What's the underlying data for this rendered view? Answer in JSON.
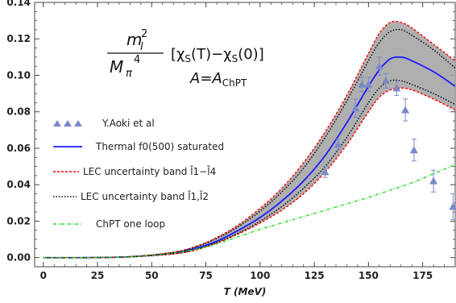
{
  "chart_data": {
    "type": "line",
    "xlabel": "T (MeV)",
    "ylabel": "",
    "xlim": [
      -4,
      190
    ],
    "ylim": [
      -0.005,
      0.14
    ],
    "x_ticks": [
      "0",
      "25",
      "50",
      "75",
      "100",
      "125",
      "150",
      "175"
    ],
    "y_ticks": [
      "0.00",
      "0.02",
      "0.04",
      "0.06",
      "0.08",
      "0.10",
      "0.12",
      "0.14"
    ],
    "annotation": {
      "numerator": "m",
      "numerator_sub": "l",
      "numerator_sup": "2",
      "denominator": "M",
      "denominator_sub": "π",
      "denominator_sup": "4",
      "bracket": "[χ",
      "bracket_sub1": "S",
      "bracket_mid": "(T)−χ",
      "bracket_sub2": "S",
      "bracket_end": "(0)]",
      "condition": "A=A",
      "condition_sub": "ChPT"
    },
    "legend": [
      {
        "name": "Y.Aoki et al",
        "style": "triangles",
        "color": "#7b88c8"
      },
      {
        "name": "Thermal f0(500) saturated",
        "style": "solid",
        "color": "#1a1aff"
      },
      {
        "name": "LEC uncertainty band l̄1−l̄4",
        "style": "red-dashed",
        "color": "#ff0000"
      },
      {
        "name": "LEC uncertainty band l̄1,l̄2",
        "style": "black-dotted",
        "color": "#000000"
      },
      {
        "name": "ChPT one loop",
        "style": "green-dashed",
        "color": "#22dd22"
      }
    ],
    "band_fill": "#a6a6a6",
    "series": [
      {
        "name": "Y.Aoki et al",
        "kind": "points",
        "color": "#7b88c8",
        "x": [
          130,
          136,
          144,
          147,
          150,
          155,
          158,
          163,
          167,
          171,
          180,
          189
        ],
        "y": [
          0.047,
          0.062,
          0.082,
          0.095,
          0.095,
          0.105,
          0.097,
          0.093,
          0.081,
          0.059,
          0.042,
          0.028
        ],
        "err": [
          0.003,
          0.003,
          0.005,
          0.004,
          0.004,
          0.005,
          0.004,
          0.004,
          0.006,
          0.006,
          0.006,
          0.007
        ]
      },
      {
        "name": "Thermal f0(500) saturated",
        "kind": "line",
        "color": "#1a1aff",
        "x": [
          0,
          20,
          40,
          60,
          70,
          80,
          90,
          100,
          110,
          120,
          130,
          140,
          150,
          155,
          160,
          165,
          170,
          180,
          190
        ],
        "y": [
          0,
          0,
          0.0005,
          0.0025,
          0.005,
          0.009,
          0.015,
          0.022,
          0.031,
          0.042,
          0.056,
          0.074,
          0.094,
          0.103,
          0.109,
          0.11,
          0.108,
          0.102,
          0.094
        ]
      },
      {
        "name": "LEC uncertainty band l̄1−l̄4",
        "kind": "line",
        "color": "#ff0000",
        "band": "upper",
        "x": [
          0,
          20,
          40,
          60,
          70,
          80,
          90,
          100,
          110,
          120,
          130,
          140,
          150,
          155,
          160,
          165,
          170,
          180,
          190
        ],
        "y": [
          0,
          0,
          0.0005,
          0.003,
          0.006,
          0.011,
          0.018,
          0.027,
          0.038,
          0.052,
          0.069,
          0.089,
          0.112,
          0.123,
          0.129,
          0.129,
          0.126,
          0.117,
          0.108
        ]
      },
      {
        "name": "LEC uncertainty band l̄1−l̄4",
        "kind": "line",
        "color": "#ff0000",
        "band": "lower",
        "x": [
          0,
          20,
          40,
          60,
          70,
          80,
          90,
          100,
          110,
          120,
          130,
          140,
          150,
          155,
          160,
          165,
          170,
          180,
          190
        ],
        "y": [
          0,
          0,
          0.0004,
          0.002,
          0.004,
          0.008,
          0.013,
          0.019,
          0.026,
          0.035,
          0.047,
          0.062,
          0.08,
          0.088,
          0.092,
          0.093,
          0.092,
          0.087,
          0.081
        ]
      },
      {
        "name": "LEC uncertainty band l̄1,l̄2",
        "kind": "line",
        "color": "#000000",
        "band": "upper",
        "x": [
          0,
          20,
          40,
          60,
          70,
          80,
          90,
          100,
          110,
          120,
          130,
          140,
          150,
          155,
          160,
          165,
          170,
          180,
          190
        ],
        "y": [
          0,
          0,
          0.0005,
          0.0028,
          0.0058,
          0.0105,
          0.017,
          0.0255,
          0.036,
          0.049,
          0.066,
          0.086,
          0.108,
          0.118,
          0.124,
          0.125,
          0.122,
          0.114,
          0.104
        ]
      },
      {
        "name": "LEC uncertainty band l̄1,l̄2",
        "kind": "line",
        "color": "#000000",
        "band": "lower",
        "x": [
          0,
          20,
          40,
          60,
          70,
          80,
          90,
          100,
          110,
          120,
          130,
          140,
          150,
          155,
          160,
          165,
          170,
          180,
          190
        ],
        "y": [
          0,
          0,
          0.0004,
          0.0022,
          0.0045,
          0.0083,
          0.0135,
          0.02,
          0.028,
          0.038,
          0.05,
          0.066,
          0.085,
          0.093,
          0.097,
          0.097,
          0.095,
          0.09,
          0.084
        ]
      },
      {
        "name": "ChPT one loop",
        "kind": "line",
        "color": "#22dd22",
        "x": [
          0,
          20,
          40,
          60,
          70,
          80,
          90,
          100,
          110,
          120,
          130,
          140,
          150,
          160,
          170,
          180,
          190
        ],
        "y": [
          0,
          0,
          0.0004,
          0.0025,
          0.0045,
          0.0075,
          0.0115,
          0.0155,
          0.019,
          0.0225,
          0.026,
          0.0295,
          0.033,
          0.037,
          0.041,
          0.046,
          0.051
        ]
      }
    ]
  }
}
